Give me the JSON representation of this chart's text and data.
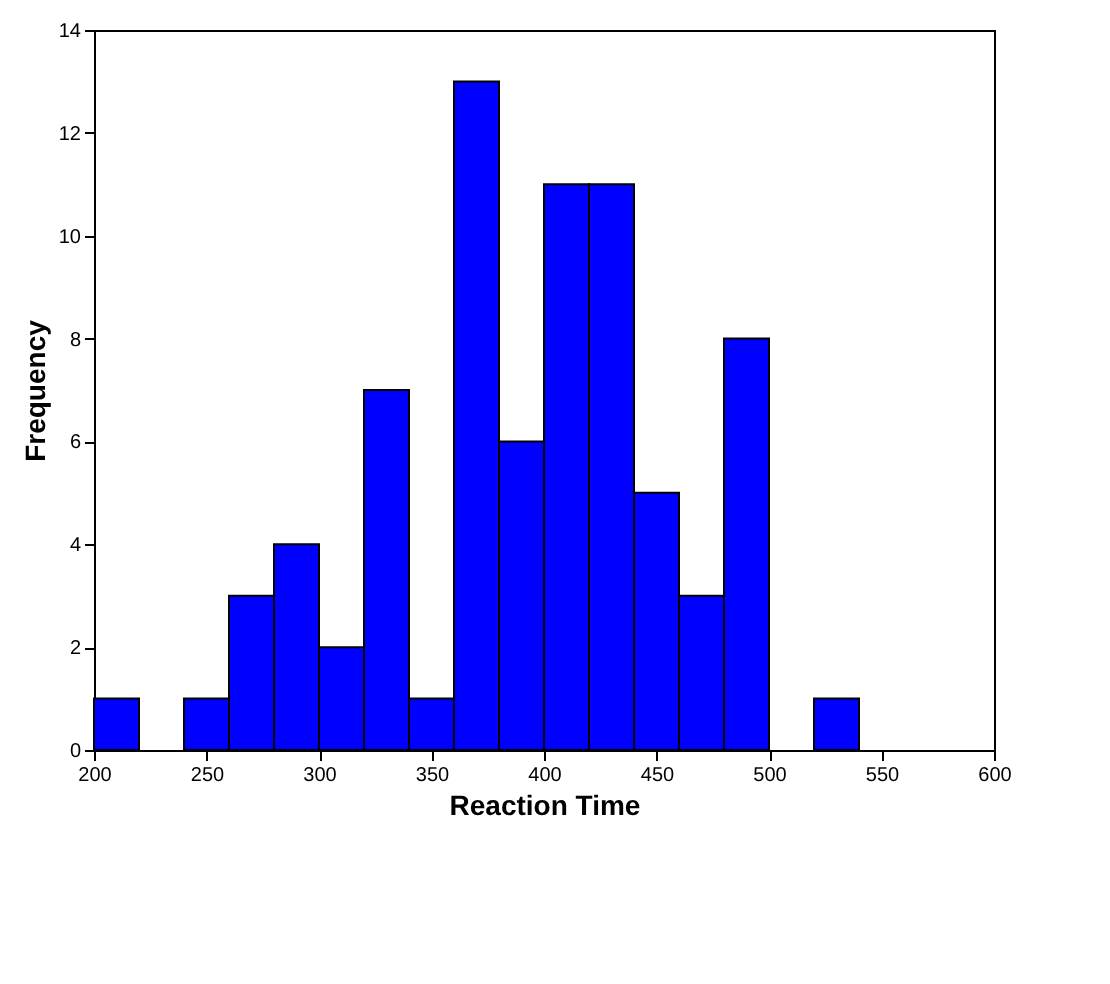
{
  "chart_data": {
    "type": "histogram",
    "xlabel": "Reaction Time",
    "ylabel": "Frequency",
    "bins": [
      200,
      220,
      240,
      260,
      280,
      300,
      320,
      340,
      360,
      380,
      400,
      420,
      440,
      460,
      480,
      500,
      520,
      540
    ],
    "values": [
      1,
      0,
      1,
      3,
      4,
      2,
      7,
      1,
      13,
      6,
      11,
      11,
      5,
      3,
      8,
      0,
      1
    ],
    "color": "#0000ff",
    "xlim": [
      200,
      600
    ],
    "xticks": [
      200,
      250,
      300,
      350,
      400,
      450,
      500,
      550,
      600
    ],
    "ylim": [
      0,
      14
    ],
    "yticks": [
      0,
      2,
      4,
      6,
      8,
      10,
      12,
      14
    ],
    "grid": false
  }
}
